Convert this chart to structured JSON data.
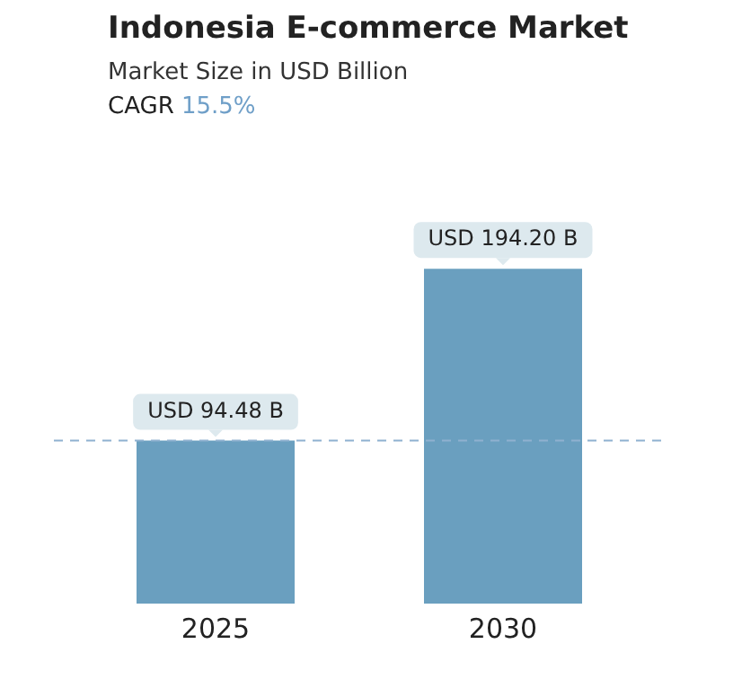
{
  "chart_data": {
    "type": "bar",
    "title": "Indonesia E-commerce Market",
    "subtitle": "Market Size in USD Billion",
    "annotations": [
      "CAGR 15.5%"
    ],
    "categories": [
      "2025",
      "2030"
    ],
    "values": [
      94.48,
      194.2
    ],
    "value_labels": [
      "USD 94.48 B",
      "USD 194.20 B"
    ],
    "color": "#6a9fbf",
    "ref_lines": [
      {
        "axis": "y",
        "value": 94.48,
        "color": "#8fb1d0",
        "line_style": "dashed"
      }
    ],
    "grid": false,
    "legend": false
  }
}
